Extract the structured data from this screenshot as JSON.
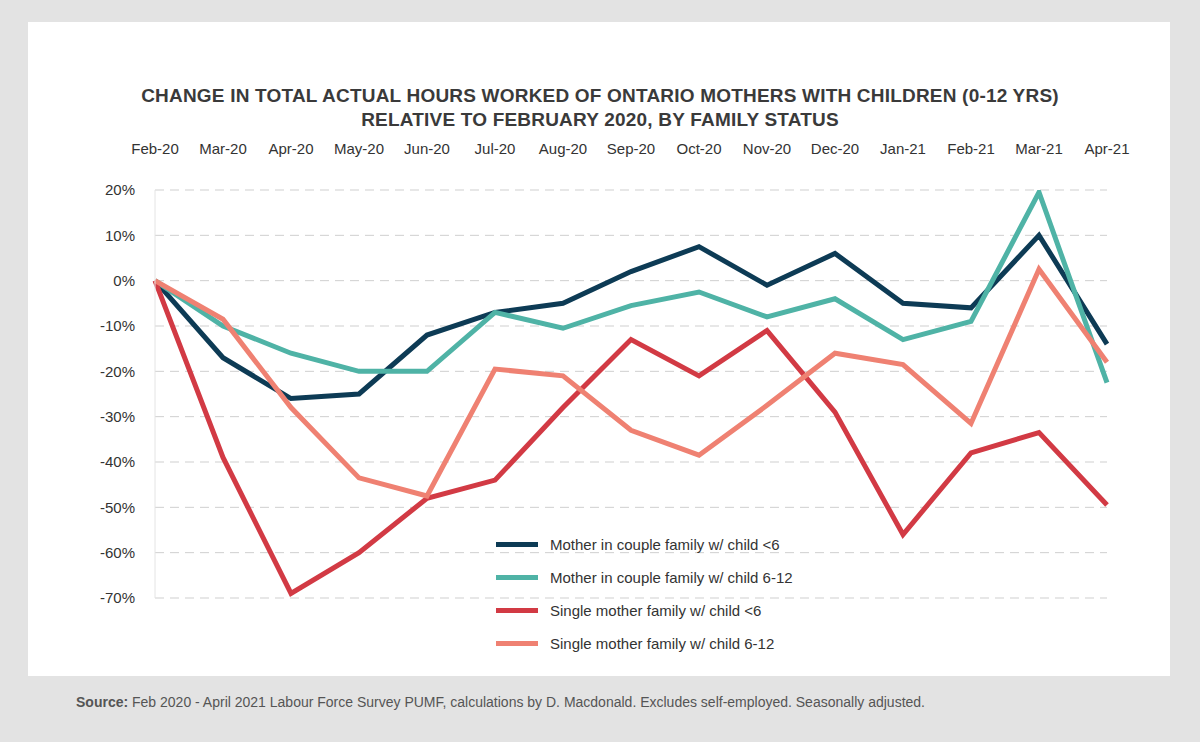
{
  "chart_data": {
    "type": "line",
    "title": "CHANGE IN TOTAL ACTUAL HOURS WORKED OF ONTARIO MOTHERS WITH CHILDREN (0-12 YRS)\nRELATIVE TO FEBRUARY 2020, BY FAMILY STATUS",
    "categories": [
      "Feb-20",
      "Mar-20",
      "Apr-20",
      "May-20",
      "Jun-20",
      "Jul-20",
      "Aug-20",
      "Sep-20",
      "Oct-20",
      "Nov-20",
      "Dec-20",
      "Jan-21",
      "Feb-21",
      "Mar-21",
      "Apr-21"
    ],
    "series": [
      {
        "name": "Mother in couple family w/ child <6",
        "color": "#0d3b55",
        "values": [
          0,
          -17,
          -26,
          -25,
          -12,
          -7,
          -5,
          2,
          7.5,
          -1,
          6,
          -5,
          -6,
          10,
          -14
        ]
      },
      {
        "name": "Mother in couple family w/ child 6-12",
        "color": "#4fb3a6",
        "values": [
          0,
          -10,
          -16,
          -20,
          -20,
          -7,
          -10.5,
          -5.5,
          -2.5,
          -8,
          -4,
          -13,
          -9,
          19.5,
          -22.5
        ]
      },
      {
        "name": "Single mother family w/ child <6",
        "color": "#d23a44",
        "values": [
          0,
          -39,
          -69,
          -60,
          -48,
          -44,
          -28,
          -13,
          -21,
          -11,
          -29,
          -56,
          -38,
          -33.5,
          -49.5
        ]
      },
      {
        "name": "Single mother family w/ child 6-12",
        "color": "#ef8172",
        "values": [
          0,
          -8.5,
          -28,
          -43.5,
          -47.5,
          -19.5,
          -21,
          -33,
          -38.5,
          -27.5,
          -16,
          -18.5,
          -31.5,
          2.5,
          -18
        ]
      }
    ],
    "ylim": [
      -70,
      20
    ],
    "yticks": [
      {
        "value": -70,
        "label": "-70%"
      },
      {
        "value": -60,
        "label": "-60%"
      },
      {
        "value": -50,
        "label": "-50%"
      },
      {
        "value": -40,
        "label": "-40%"
      },
      {
        "value": -30,
        "label": "-30%"
      },
      {
        "value": -20,
        "label": "-20%"
      },
      {
        "value": -10,
        "label": "-10%"
      },
      {
        "value": 0,
        "label": "0%"
      },
      {
        "value": 10,
        "label": "10%"
      },
      {
        "value": 20,
        "label": "20%"
      }
    ],
    "grid": true,
    "legend": "lower center",
    "note": "Source: Feb 2020 - April 2021 Labour Force Survey PUMF, calculations by D. Macdonald. Excludes self-employed. Seasonally adjusted."
  }
}
